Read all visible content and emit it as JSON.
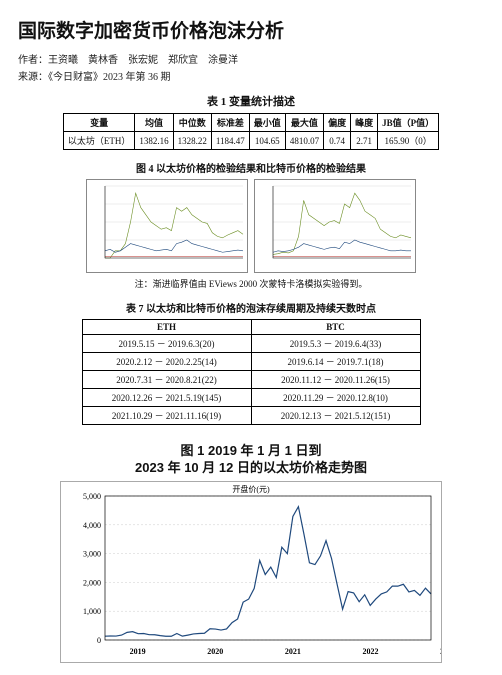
{
  "title": "国际数字加密货币价格泡沫分析",
  "authors_line": "作者：王资曦　黄林香　张宏妮　郑欣宜　涂曼洋",
  "source_line": "来源：《今日财富》2023 年第 36 期",
  "table1": {
    "caption": "表 1 变量统计描述",
    "headers": [
      "变量",
      "均值",
      "中位数",
      "标准差",
      "最小值",
      "最大值",
      "偏度",
      "峰度",
      "JB值（P值）"
    ],
    "row_label": "以太坊（ETH）",
    "row": [
      "1382.16",
      "1328.22",
      "1184.47",
      "104.65",
      "4810.07",
      "0.74",
      "2.71",
      "165.90（0）"
    ]
  },
  "fig4": {
    "caption": "图 4 以太坊价格的检验结果和比特币价格的检验结果",
    "note": "注：渐进临界值由 EViews 2000 次蒙特卡洛模拟实验得到。",
    "left": {
      "ylim": [
        0,
        5000
      ],
      "series": [
        {
          "color": "#6b8e23",
          "width": 0.6,
          "pts": [
            0,
            0,
            0.1,
            0.1,
            0.2,
            0.5,
            0.9,
            0.7,
            0.6,
            0.5,
            0.45,
            0.4,
            0.42,
            0.38,
            0.7,
            0.65,
            0.7,
            0.6,
            0.55,
            0.5,
            0.48,
            0.35,
            0.3,
            0.28,
            0.32,
            0.35,
            0.38,
            0.33
          ]
        },
        {
          "color": "#1f497d",
          "width": 0.6,
          "pts": [
            0.1,
            0.12,
            0.08,
            0.1,
            0.15,
            0.2,
            0.18,
            0.16,
            0.14,
            0.12,
            0.1,
            0.11,
            0.12,
            0.1,
            0.2,
            0.22,
            0.25,
            0.2,
            0.18,
            0.16,
            0.14,
            0.12,
            0.1,
            0.08,
            0.09,
            0.1,
            0.11,
            0.1
          ]
        },
        {
          "color": "#c0504d",
          "width": 0.6,
          "pts": [
            0.02,
            0.02,
            0.02,
            0.02,
            0.02,
            0.02,
            0.02,
            0.02,
            0.02,
            0.02,
            0.02,
            0.02,
            0.02,
            0.02,
            0.02,
            0.02,
            0.02,
            0.02,
            0.02,
            0.02,
            0.02,
            0.02,
            0.02,
            0.02,
            0.02,
            0.02,
            0.02,
            0.02
          ]
        }
      ]
    },
    "right": {
      "ylim": [
        0,
        70000
      ],
      "series": [
        {
          "color": "#6b8e23",
          "width": 0.6,
          "pts": [
            0.05,
            0.06,
            0.08,
            0.07,
            0.1,
            0.3,
            0.8,
            0.6,
            0.55,
            0.5,
            0.45,
            0.5,
            0.52,
            0.48,
            0.75,
            0.7,
            0.9,
            0.8,
            0.65,
            0.6,
            0.55,
            0.4,
            0.35,
            0.3,
            0.28,
            0.32,
            0.3,
            0.28
          ]
        },
        {
          "color": "#1f497d",
          "width": 0.6,
          "pts": [
            0.08,
            0.1,
            0.09,
            0.1,
            0.12,
            0.15,
            0.2,
            0.18,
            0.16,
            0.14,
            0.12,
            0.14,
            0.15,
            0.13,
            0.22,
            0.2,
            0.25,
            0.22,
            0.2,
            0.18,
            0.16,
            0.14,
            0.12,
            0.1,
            0.1,
            0.11,
            0.1,
            0.1
          ]
        },
        {
          "color": "#c0504d",
          "width": 0.6,
          "pts": [
            0.02,
            0.02,
            0.02,
            0.02,
            0.02,
            0.02,
            0.02,
            0.02,
            0.02,
            0.02,
            0.02,
            0.02,
            0.02,
            0.02,
            0.02,
            0.02,
            0.02,
            0.02,
            0.02,
            0.02,
            0.02,
            0.02,
            0.02,
            0.02,
            0.02,
            0.02,
            0.02,
            0.02
          ]
        }
      ]
    }
  },
  "table7": {
    "caption": "表 7 以太坊和比特币价格的泡沫存续周期及持续天数时点",
    "headers": [
      "ETH",
      "BTC"
    ],
    "rows": [
      [
        "2019.5.15 － 2019.6.3(20)",
        "2019.5.3 － 2019.6.4(33)"
      ],
      [
        "2020.2.12 － 2020.2.25(14)",
        "2019.6.14 － 2019.7.1(18)"
      ],
      [
        "2020.7.31 － 2020.8.21(22)",
        "2020.11.12 － 2020.11.26(15)"
      ],
      [
        "2020.12.26 － 2021.5.19(145)",
        "2020.11.29 － 2020.12.8(10)"
      ],
      [
        "2021.10.29 － 2021.11.16(19)",
        "2020.12.13 － 2021.5.12(151)"
      ]
    ]
  },
  "fig1": {
    "caption_line1": "图 1 2019 年 1 月 1 日到",
    "caption_line2": "2023 年 10 月 12 日的以太坊价格走势图",
    "ylabel": "开盘价(元)",
    "xticks": [
      "2019",
      "2020",
      "2021",
      "2022",
      "2023"
    ],
    "yticks": [
      "0",
      "1,000",
      "2,000",
      "3,000",
      "4,000",
      "5,000"
    ],
    "ylim": [
      0,
      5000
    ],
    "line_color": "#1f497d",
    "grid_color": "#cccccc",
    "pts": [
      133,
      140,
      137,
      170,
      265,
      290,
      220,
      225,
      185,
      183,
      152,
      130,
      130,
      225,
      134,
      170,
      210,
      225,
      235,
      390,
      380,
      345,
      385,
      605,
      730,
      1315,
      1420,
      1790,
      2760,
      2275,
      2530,
      2170,
      3220,
      3000,
      4290,
      4630,
      3680,
      2680,
      2620,
      2920,
      3450,
      2830,
      1940,
      1070,
      1680,
      1635,
      1330,
      1570,
      1200,
      1420,
      1600,
      1670,
      1870,
      1870,
      1935,
      1670,
      1720,
      1550,
      1800,
      1600
    ]
  }
}
